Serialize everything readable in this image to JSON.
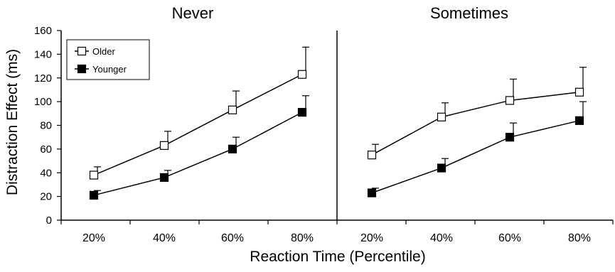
{
  "chart_data": {
    "type": "line",
    "xlabel": "Reaction Time (Percentile)",
    "ylabel": "Distraction Effect (ms)",
    "ylim": [
      0,
      160
    ],
    "yticks": [
      0,
      20,
      40,
      60,
      80,
      100,
      120,
      140,
      160
    ],
    "grid": false,
    "legend": {
      "placement": "top-left",
      "entries": [
        {
          "name": "Older",
          "marker": "open-square",
          "fill": "#ffffff"
        },
        {
          "name": "Younger",
          "marker": "filled-square",
          "fill": "#000000"
        }
      ]
    },
    "panels": [
      {
        "title": "Never",
        "categories": [
          "20%",
          "40%",
          "60%",
          "80%"
        ],
        "series": [
          {
            "name": "Older",
            "values": [
              38,
              63,
              93,
              123
            ],
            "error_upper": [
              45,
              75,
              109,
              146
            ]
          },
          {
            "name": "Younger",
            "values": [
              21,
              36,
              60,
              91
            ],
            "error_upper": [
              25,
              42,
              70,
              105
            ]
          }
        ]
      },
      {
        "title": "Sometimes",
        "categories": [
          "20%",
          "40%",
          "60%",
          "80%"
        ],
        "series": [
          {
            "name": "Older",
            "values": [
              55,
              87,
              101,
              108
            ],
            "error_upper": [
              64,
              99,
              119,
              129
            ]
          },
          {
            "name": "Younger",
            "values": [
              23,
              44,
              70,
              84
            ],
            "error_upper": [
              27,
              52,
              82,
              100
            ]
          }
        ]
      }
    ]
  }
}
